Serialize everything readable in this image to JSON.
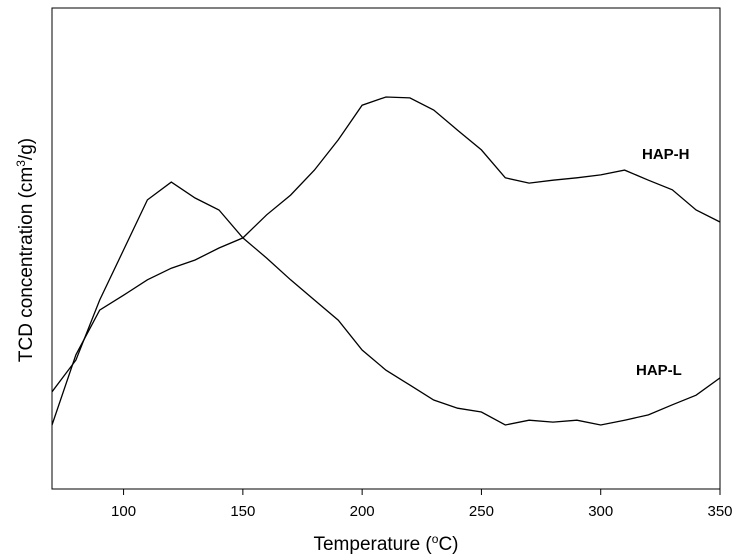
{
  "chart_data": {
    "type": "line",
    "x_label": [
      "Temperature (",
      "o",
      "C)"
    ],
    "y_label": [
      "TCD concentration (cm",
      "3",
      "/g)"
    ],
    "x": [
      70,
      80,
      90,
      100,
      110,
      120,
      130,
      140,
      150,
      160,
      170,
      180,
      190,
      200,
      210,
      220,
      230,
      240,
      250,
      260,
      270,
      280,
      290,
      300,
      310,
      320,
      330,
      340,
      350
    ],
    "series": [
      {
        "name": "HAP-H",
        "color": "#000000",
        "values": [
          13.3,
          27.9,
          37.2,
          40.3,
          43.5,
          45.9,
          47.6,
          50.1,
          52.2,
          57.0,
          61.1,
          66.3,
          72.6,
          79.8,
          81.5,
          81.3,
          78.8,
          74.6,
          70.5,
          64.7,
          63.6,
          64.2,
          64.7,
          65.3,
          66.3,
          64.2,
          62.2,
          58.0,
          55.5
        ]
      },
      {
        "name": "HAP-L",
        "color": "#000000",
        "values": [
          20.2,
          26.8,
          39.3,
          49.7,
          60.1,
          63.8,
          60.5,
          58.0,
          52.2,
          48.0,
          43.5,
          39.3,
          35.1,
          28.9,
          24.7,
          21.6,
          18.5,
          16.8,
          16.0,
          13.3,
          14.3,
          13.9,
          14.3,
          13.3,
          14.3,
          15.4,
          17.5,
          19.5,
          23.1
        ]
      }
    ],
    "xlim": [
      70,
      350
    ],
    "xticks": [
      100,
      150,
      200,
      250,
      300,
      350
    ],
    "ylim": [
      0,
      100
    ]
  }
}
